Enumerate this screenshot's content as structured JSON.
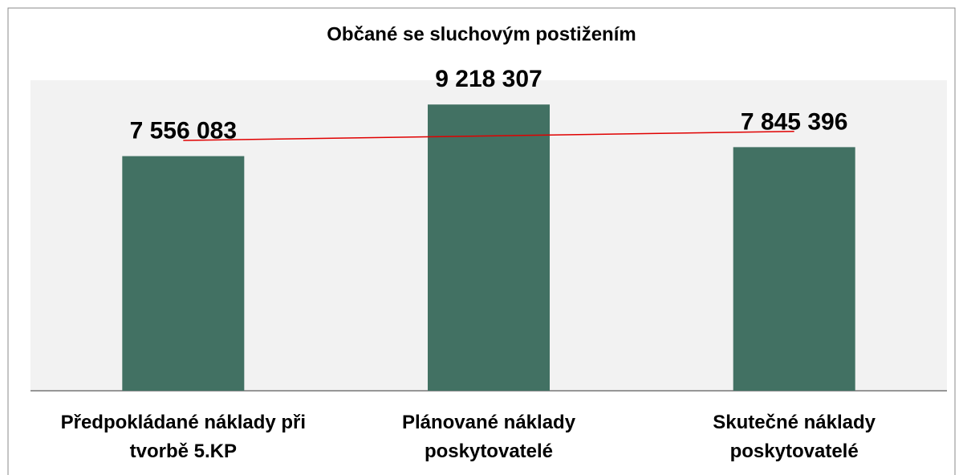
{
  "chart_data": {
    "type": "bar",
    "title": "Občané se sluchovým postižením",
    "categories": [
      "Předpokládané náklady při tvorbě 5.KP",
      "Plánované náklady poskytovatelé",
      "Skutečné náklady poskytovatelé"
    ],
    "values": [
      7556083,
      9218307,
      7845396
    ],
    "value_labels": [
      "7 556 083",
      "9 218 307",
      "7 845 396"
    ],
    "color": "#427163",
    "ylim": [
      0,
      10000000
    ],
    "trendline": {
      "type": "linear",
      "color": "#e00000"
    }
  }
}
